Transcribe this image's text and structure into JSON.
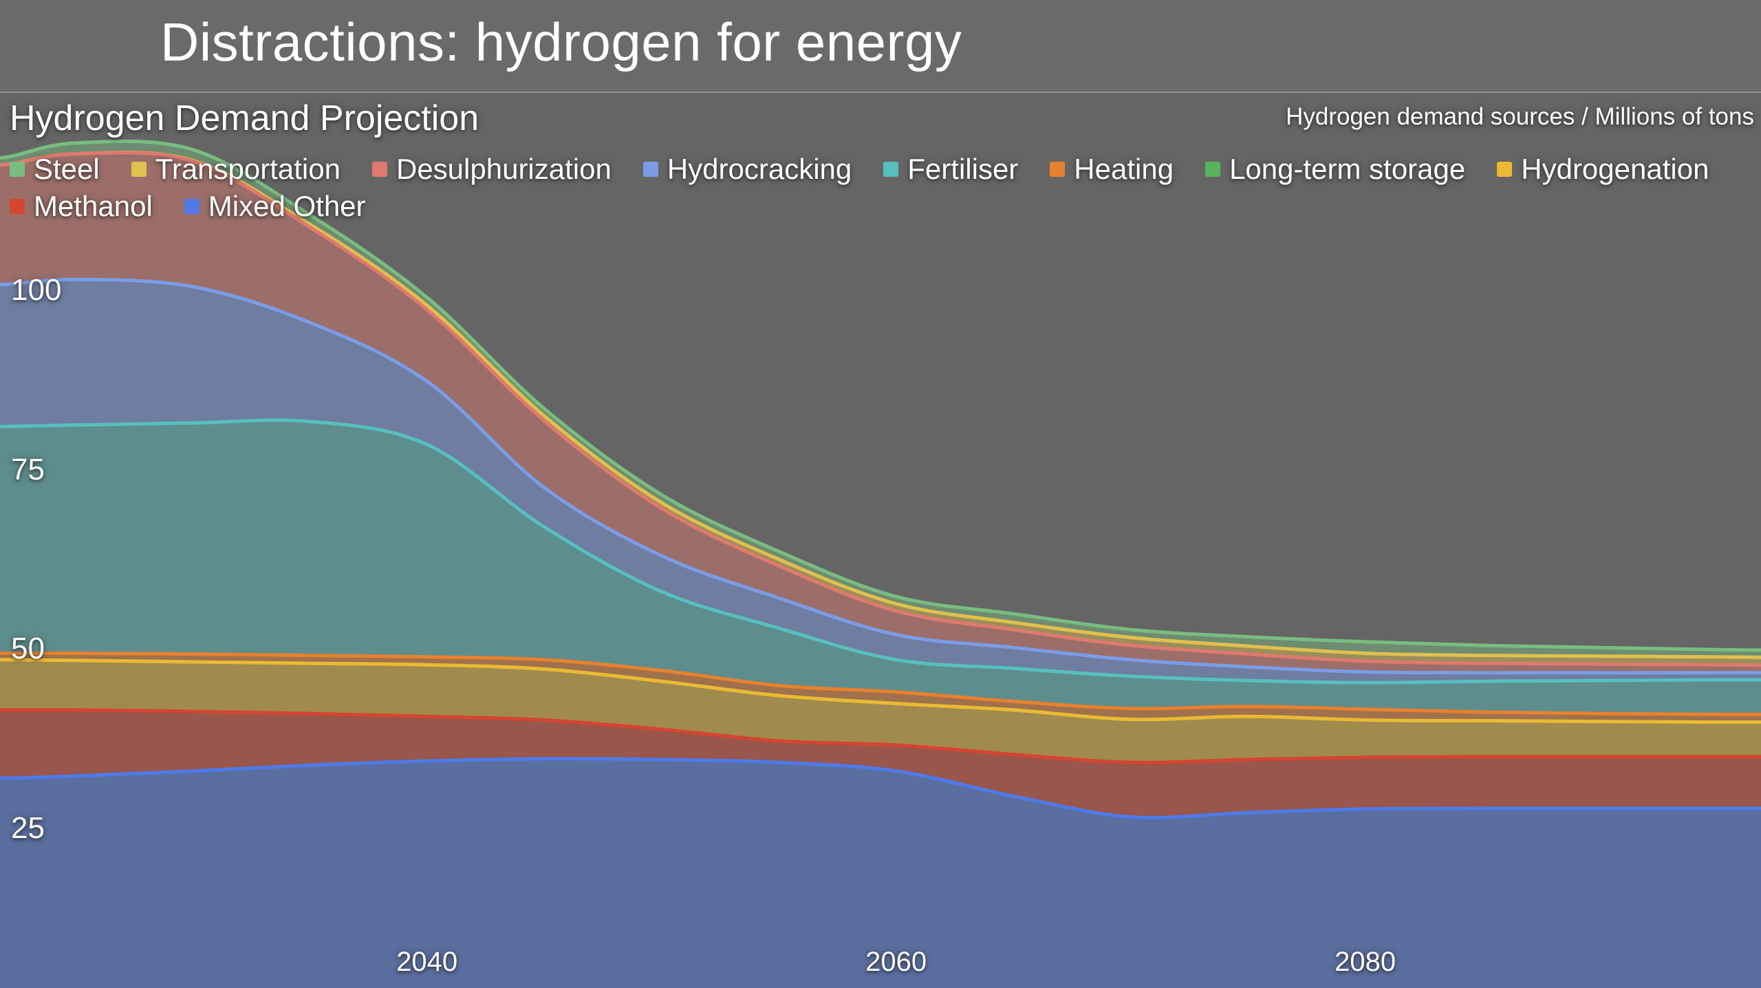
{
  "slide": {
    "title": "Distractions: hydrogen for energy"
  },
  "colors": {
    "page_background": "#656565",
    "header_background": "#6a6a6a",
    "header_divider": "#8f8f8f",
    "text": "#ffffff"
  },
  "chart": {
    "subtitle": "Hydrogen Demand Projection",
    "units_label": "Hydrogen demand sources / Millions of tons"
  },
  "legend": {
    "rows": [
      [
        "Steel",
        "Transportation",
        "Desulphurization",
        "Hydrocracking",
        "Fertiliser",
        "Heating",
        "Long-term storage",
        "Hydrogenation"
      ],
      [
        "Methanol",
        "Mixed Other"
      ]
    ]
  },
  "axes": {
    "y_ticks": [
      100,
      75,
      50,
      25
    ],
    "x_ticks": [
      2040,
      2060,
      2080
    ]
  },
  "chart_data": {
    "type": "area",
    "stacked": true,
    "stack_note": "series listed top-of-stack first; stacked bottom-up in reverse list order",
    "title": "Hydrogen Demand Projection",
    "xlabel": "",
    "ylabel": "Hydrogen demand sources / Millions of tons",
    "grid": false,
    "legend_position": "top",
    "x_visible_range": [
      2022,
      2098
    ],
    "y_visible_range": [
      3,
      140
    ],
    "x": [
      2022,
      2025,
      2030,
      2035,
      2040,
      2045,
      2050,
      2055,
      2060,
      2065,
      2070,
      2075,
      2080,
      2085,
      2090,
      2095,
      2098
    ],
    "series": [
      {
        "name": "Steel",
        "color": "#79bd80",
        "values": [
          1.0,
          1.5,
          1.5,
          1.3,
          1.1,
          1.0,
          1.1,
          1.1,
          1.0,
          1.2,
          1.1,
          1.3,
          1.6,
          1.4,
          1.2,
          1.0,
          1.0
        ]
      },
      {
        "name": "Transportation",
        "color": "#e0c04e",
        "values": [
          0.0,
          0.0,
          0.1,
          0.4,
          0.6,
          0.7,
          0.8,
          0.9,
          1.0,
          1.0,
          1.1,
          1.1,
          1.1,
          1.1,
          1.1,
          1.1,
          1.1
        ]
      },
      {
        "name": "Desulphurization",
        "color": "#e0796e",
        "values": [
          16.7,
          17.5,
          17.5,
          13.3,
          10.0,
          9.3,
          6.6,
          4.5,
          3.3,
          2.5,
          2.0,
          1.8,
          1.5,
          1.3,
          1.2,
          1.1,
          1.0
        ]
      },
      {
        "name": "Hydrocracking",
        "color": "#7b9ce8",
        "values": [
          19.8,
          20.3,
          19.0,
          13.8,
          8.8,
          5.5,
          5.0,
          4.2,
          3.5,
          2.9,
          2.3,
          1.9,
          1.5,
          1.2,
          1.1,
          1.0,
          1.0
        ]
      },
      {
        "name": "Fertiliser",
        "color": "#57bfbf",
        "values": [
          31.6,
          31.8,
          32.2,
          32.6,
          29.6,
          18.5,
          11.0,
          8.0,
          4.5,
          4.6,
          4.5,
          3.6,
          3.7,
          4.3,
          4.6,
          4.8,
          4.8
        ]
      },
      {
        "name": "Heating",
        "color": "#e8812e",
        "values": [
          0.9,
          1.0,
          1.1,
          1.1,
          1.1,
          1.3,
          1.5,
          1.4,
          1.6,
          1.2,
          1.5,
          1.4,
          1.5,
          1.2,
          1.1,
          1.1,
          1.1
        ]
      },
      {
        "name": "Long-term storage",
        "color": "#59b25c",
        "values": [
          0,
          0,
          0,
          0,
          0,
          0,
          0,
          0,
          0,
          0,
          0,
          0,
          0,
          0,
          0,
          0,
          0
        ]
      },
      {
        "name": "Hydrogenation",
        "color": "#ecb933",
        "values": [
          7.0,
          6.9,
          6.9,
          7.0,
          7.2,
          7.1,
          6.7,
          6.3,
          5.8,
          6.2,
          6.0,
          6.0,
          5.2,
          5.0,
          4.9,
          4.8,
          4.8
        ]
      },
      {
        "name": "Methanol",
        "color": "#d6452f",
        "values": [
          9.5,
          9.2,
          8.3,
          7.2,
          6.2,
          5.4,
          4.2,
          3.0,
          3.6,
          5.8,
          7.6,
          7.4,
          7.2,
          7.2,
          7.2,
          7.2,
          7.2
        ]
      },
      {
        "name": "Mixed Other",
        "color": "#4f7ae8",
        "values": [
          32.0,
          32.3,
          33.0,
          33.8,
          34.4,
          34.7,
          34.6,
          34.2,
          33.0,
          29.5,
          26.6,
          27.2,
          27.7,
          27.8,
          27.8,
          27.8,
          27.8
        ]
      }
    ],
    "fill_opacity": 0.45,
    "stroke_width": 5
  }
}
